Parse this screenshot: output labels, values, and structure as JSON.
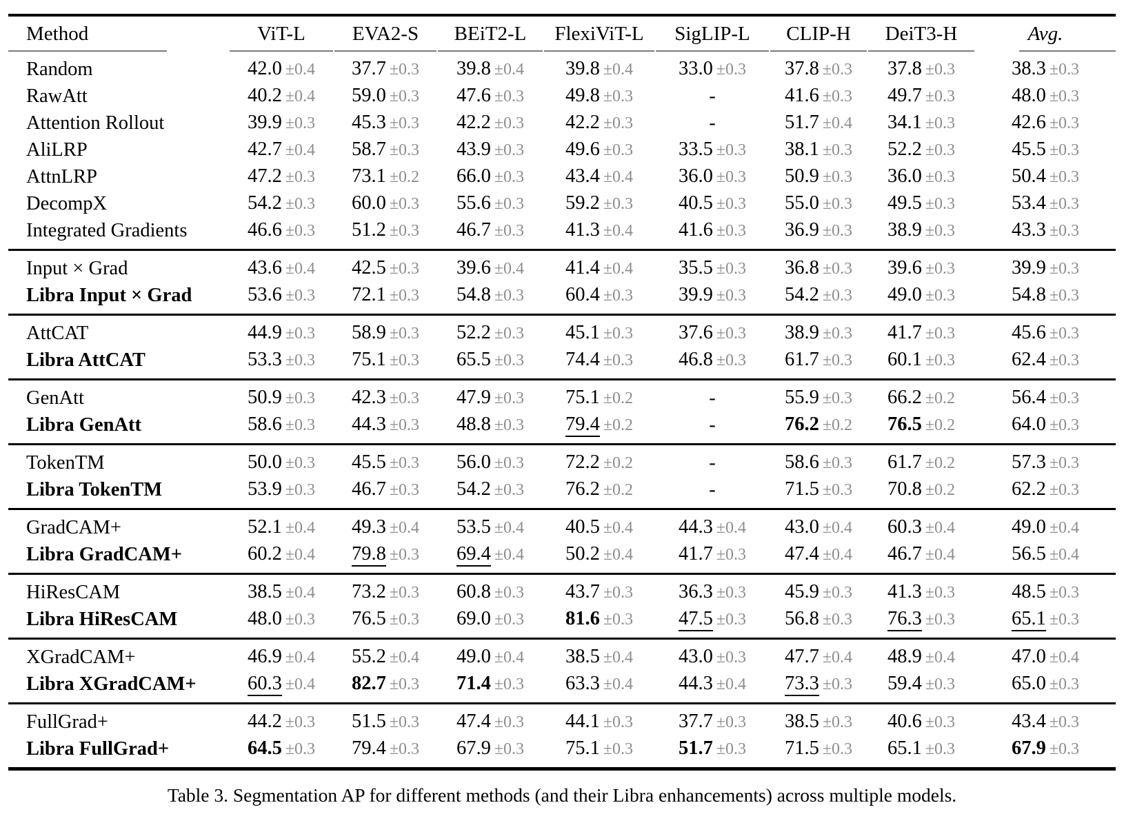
{
  "caption": "Table 3. Segmentation AP for different methods (and their Libra enhancements) across multiple models.",
  "colors": {
    "text": "#000000",
    "error_text": "#8d8d8d",
    "header_rule": "#7b7b7b"
  },
  "table": {
    "columns": [
      "Method",
      "ViT-L",
      "EVA2-S",
      "BEiT2-L",
      "FlexiViT-L",
      "SigLIP-L",
      "CLIP-H",
      "DeiT3-H",
      "Avg."
    ],
    "groups": [
      {
        "rows": [
          {
            "method": "Random",
            "bold": false,
            "cells": [
              [
                "42.0",
                "±0.4"
              ],
              [
                "37.7",
                "±0.3"
              ],
              [
                "39.8",
                "±0.4"
              ],
              [
                "39.8",
                "±0.4"
              ],
              [
                "33.0",
                "±0.3"
              ],
              [
                "37.8",
                "±0.3"
              ],
              [
                "37.8",
                "±0.3"
              ],
              [
                "38.3",
                "±0.3"
              ]
            ]
          },
          {
            "method": "RawAtt",
            "bold": false,
            "cells": [
              [
                "40.2",
                "±0.4"
              ],
              [
                "59.0",
                "±0.3"
              ],
              [
                "47.6",
                "±0.3"
              ],
              [
                "49.8",
                "±0.3"
              ],
              [
                "-",
                ""
              ],
              [
                "41.6",
                "±0.3"
              ],
              [
                "49.7",
                "±0.3"
              ],
              [
                "48.0",
                "±0.3"
              ]
            ]
          },
          {
            "method": "Attention Rollout",
            "bold": false,
            "cells": [
              [
                "39.9",
                "±0.3"
              ],
              [
                "45.3",
                "±0.3"
              ],
              [
                "42.2",
                "±0.3"
              ],
              [
                "42.2",
                "±0.3"
              ],
              [
                "-",
                ""
              ],
              [
                "51.7",
                "±0.4"
              ],
              [
                "34.1",
                "±0.3"
              ],
              [
                "42.6",
                "±0.3"
              ]
            ]
          },
          {
            "method": "AliLRP",
            "bold": false,
            "cells": [
              [
                "42.7",
                "±0.4"
              ],
              [
                "58.7",
                "±0.3"
              ],
              [
                "43.9",
                "±0.3"
              ],
              [
                "49.6",
                "±0.3"
              ],
              [
                "33.5",
                "±0.3"
              ],
              [
                "38.1",
                "±0.3"
              ],
              [
                "52.2",
                "±0.3"
              ],
              [
                "45.5",
                "±0.3"
              ]
            ]
          },
          {
            "method": "AttnLRP",
            "bold": false,
            "cells": [
              [
                "47.2",
                "±0.3"
              ],
              [
                "73.1",
                "±0.2"
              ],
              [
                "66.0",
                "±0.3"
              ],
              [
                "43.4",
                "±0.4"
              ],
              [
                "36.0",
                "±0.3"
              ],
              [
                "50.9",
                "±0.3"
              ],
              [
                "36.0",
                "±0.3"
              ],
              [
                "50.4",
                "±0.3"
              ]
            ]
          },
          {
            "method": "DecompX",
            "bold": false,
            "cells": [
              [
                "54.2",
                "±0.3"
              ],
              [
                "60.0",
                "±0.3"
              ],
              [
                "55.6",
                "±0.3"
              ],
              [
                "59.2",
                "±0.3"
              ],
              [
                "40.5",
                "±0.3"
              ],
              [
                "55.0",
                "±0.3"
              ],
              [
                "49.5",
                "±0.3"
              ],
              [
                "53.4",
                "±0.3"
              ]
            ]
          },
          {
            "method": "Integrated Gradients",
            "bold": false,
            "cells": [
              [
                "46.6",
                "±0.3"
              ],
              [
                "51.2",
                "±0.3"
              ],
              [
                "46.7",
                "±0.3"
              ],
              [
                "41.3",
                "±0.4"
              ],
              [
                "41.6",
                "±0.3"
              ],
              [
                "36.9",
                "±0.3"
              ],
              [
                "38.9",
                "±0.3"
              ],
              [
                "43.3",
                "±0.3"
              ]
            ]
          }
        ]
      },
      {
        "rows": [
          {
            "method": "Input × Grad",
            "bold": false,
            "cells": [
              [
                "43.6",
                "±0.4"
              ],
              [
                "42.5",
                "±0.3"
              ],
              [
                "39.6",
                "±0.4"
              ],
              [
                "41.4",
                "±0.4"
              ],
              [
                "35.5",
                "±0.3"
              ],
              [
                "36.8",
                "±0.3"
              ],
              [
                "39.6",
                "±0.3"
              ],
              [
                "39.9",
                "±0.3"
              ]
            ]
          },
          {
            "method": "Libra Input × Grad",
            "bold": true,
            "cells": [
              [
                "53.6",
                "±0.3"
              ],
              [
                "72.1",
                "±0.3"
              ],
              [
                "54.8",
                "±0.3"
              ],
              [
                "60.4",
                "±0.3"
              ],
              [
                "39.9",
                "±0.3"
              ],
              [
                "54.2",
                "±0.3"
              ],
              [
                "49.0",
                "±0.3"
              ],
              [
                "54.8",
                "±0.3"
              ]
            ]
          }
        ]
      },
      {
        "rows": [
          {
            "method": "AttCAT",
            "bold": false,
            "cells": [
              [
                "44.9",
                "±0.3"
              ],
              [
                "58.9",
                "±0.3"
              ],
              [
                "52.2",
                "±0.3"
              ],
              [
                "45.1",
                "±0.3"
              ],
              [
                "37.6",
                "±0.3"
              ],
              [
                "38.9",
                "±0.3"
              ],
              [
                "41.7",
                "±0.3"
              ],
              [
                "45.6",
                "±0.3"
              ]
            ]
          },
          {
            "method": "Libra AttCAT",
            "bold": true,
            "cells": [
              [
                "53.3",
                "±0.3"
              ],
              [
                "75.1",
                "±0.3"
              ],
              [
                "65.5",
                "±0.3"
              ],
              [
                "74.4",
                "±0.3"
              ],
              [
                "46.8",
                "±0.3"
              ],
              [
                "61.7",
                "±0.3"
              ],
              [
                "60.1",
                "±0.3"
              ],
              [
                "62.4",
                "±0.3"
              ]
            ]
          }
        ]
      },
      {
        "rows": [
          {
            "method": "GenAtt",
            "bold": false,
            "cells": [
              [
                "50.9",
                "±0.3"
              ],
              [
                "42.3",
                "±0.3"
              ],
              [
                "47.9",
                "±0.3"
              ],
              [
                "75.1",
                "±0.2"
              ],
              [
                "-",
                ""
              ],
              [
                "55.9",
                "±0.3"
              ],
              [
                "66.2",
                "±0.2"
              ],
              [
                "56.4",
                "±0.3"
              ]
            ]
          },
          {
            "method": "Libra GenAtt",
            "bold": true,
            "cells": [
              [
                "58.6",
                "±0.3"
              ],
              [
                "44.3",
                "±0.3"
              ],
              [
                "48.8",
                "±0.3"
              ],
              [
                "79.4",
                "±0.2",
                "u"
              ],
              [
                "-",
                ""
              ],
              [
                "76.2",
                "±0.2",
                "b"
              ],
              [
                "76.5",
                "±0.2",
                "b"
              ],
              [
                "64.0",
                "±0.3"
              ]
            ]
          }
        ]
      },
      {
        "rows": [
          {
            "method": "TokenTM",
            "bold": false,
            "cells": [
              [
                "50.0",
                "±0.3"
              ],
              [
                "45.5",
                "±0.3"
              ],
              [
                "56.0",
                "±0.3"
              ],
              [
                "72.2",
                "±0.2"
              ],
              [
                "-",
                ""
              ],
              [
                "58.6",
                "±0.3"
              ],
              [
                "61.7",
                "±0.2"
              ],
              [
                "57.3",
                "±0.3"
              ]
            ]
          },
          {
            "method": "Libra TokenTM",
            "bold": true,
            "cells": [
              [
                "53.9",
                "±0.3"
              ],
              [
                "46.7",
                "±0.3"
              ],
              [
                "54.2",
                "±0.3"
              ],
              [
                "76.2",
                "±0.2"
              ],
              [
                "-",
                ""
              ],
              [
                "71.5",
                "±0.3"
              ],
              [
                "70.8",
                "±0.2"
              ],
              [
                "62.2",
                "±0.3"
              ]
            ]
          }
        ]
      },
      {
        "rows": [
          {
            "method": "GradCAM+",
            "bold": false,
            "cells": [
              [
                "52.1",
                "±0.4"
              ],
              [
                "49.3",
                "±0.4"
              ],
              [
                "53.5",
                "±0.4"
              ],
              [
                "40.5",
                "±0.4"
              ],
              [
                "44.3",
                "±0.4"
              ],
              [
                "43.0",
                "±0.4"
              ],
              [
                "60.3",
                "±0.4"
              ],
              [
                "49.0",
                "±0.4"
              ]
            ]
          },
          {
            "method": "Libra GradCAM+",
            "bold": true,
            "cells": [
              [
                "60.2",
                "±0.4"
              ],
              [
                "79.8",
                "±0.3",
                "u"
              ],
              [
                "69.4",
                "±0.4",
                "u"
              ],
              [
                "50.2",
                "±0.4"
              ],
              [
                "41.7",
                "±0.3"
              ],
              [
                "47.4",
                "±0.4"
              ],
              [
                "46.7",
                "±0.4"
              ],
              [
                "56.5",
                "±0.4"
              ]
            ]
          }
        ]
      },
      {
        "rows": [
          {
            "method": "HiResCAM",
            "bold": false,
            "cells": [
              [
                "38.5",
                "±0.4"
              ],
              [
                "73.2",
                "±0.3"
              ],
              [
                "60.8",
                "±0.3"
              ],
              [
                "43.7",
                "±0.3"
              ],
              [
                "36.3",
                "±0.3"
              ],
              [
                "45.9",
                "±0.3"
              ],
              [
                "41.3",
                "±0.3"
              ],
              [
                "48.5",
                "±0.3"
              ]
            ]
          },
          {
            "method": "Libra HiResCAM",
            "bold": true,
            "cells": [
              [
                "48.0",
                "±0.3"
              ],
              [
                "76.5",
                "±0.3"
              ],
              [
                "69.0",
                "±0.3"
              ],
              [
                "81.6",
                "±0.3",
                "b"
              ],
              [
                "47.5",
                "±0.3",
                "u"
              ],
              [
                "56.8",
                "±0.3"
              ],
              [
                "76.3",
                "±0.3",
                "u"
              ],
              [
                "65.1",
                "±0.3",
                "u"
              ]
            ]
          }
        ]
      },
      {
        "rows": [
          {
            "method": "XGradCAM+",
            "bold": false,
            "cells": [
              [
                "46.9",
                "±0.4"
              ],
              [
                "55.2",
                "±0.4"
              ],
              [
                "49.0",
                "±0.4"
              ],
              [
                "38.5",
                "±0.4"
              ],
              [
                "43.0",
                "±0.3"
              ],
              [
                "47.7",
                "±0.4"
              ],
              [
                "48.9",
                "±0.4"
              ],
              [
                "47.0",
                "±0.4"
              ]
            ]
          },
          {
            "method": "Libra XGradCAM+",
            "bold": true,
            "cells": [
              [
                "60.3",
                "±0.4",
                "u"
              ],
              [
                "82.7",
                "±0.3",
                "b"
              ],
              [
                "71.4",
                "±0.3",
                "b"
              ],
              [
                "63.3",
                "±0.4"
              ],
              [
                "44.3",
                "±0.4"
              ],
              [
                "73.3",
                "±0.3",
                "u"
              ],
              [
                "59.4",
                "±0.3"
              ],
              [
                "65.0",
                "±0.3"
              ]
            ]
          }
        ]
      },
      {
        "rows": [
          {
            "method": "FullGrad+",
            "bold": false,
            "cells": [
              [
                "44.2",
                "±0.3"
              ],
              [
                "51.5",
                "±0.3"
              ],
              [
                "47.4",
                "±0.3"
              ],
              [
                "44.1",
                "±0.3"
              ],
              [
                "37.7",
                "±0.3"
              ],
              [
                "38.5",
                "±0.3"
              ],
              [
                "40.6",
                "±0.3"
              ],
              [
                "43.4",
                "±0.3"
              ]
            ]
          },
          {
            "method": "Libra FullGrad+",
            "bold": true,
            "cells": [
              [
                "64.5",
                "±0.3",
                "b"
              ],
              [
                "79.4",
                "±0.3"
              ],
              [
                "67.9",
                "±0.3"
              ],
              [
                "75.1",
                "±0.3"
              ],
              [
                "51.7",
                "±0.3",
                "b"
              ],
              [
                "71.5",
                "±0.3"
              ],
              [
                "65.1",
                "±0.3"
              ],
              [
                "67.9",
                "±0.3",
                "b"
              ]
            ]
          }
        ]
      }
    ]
  }
}
